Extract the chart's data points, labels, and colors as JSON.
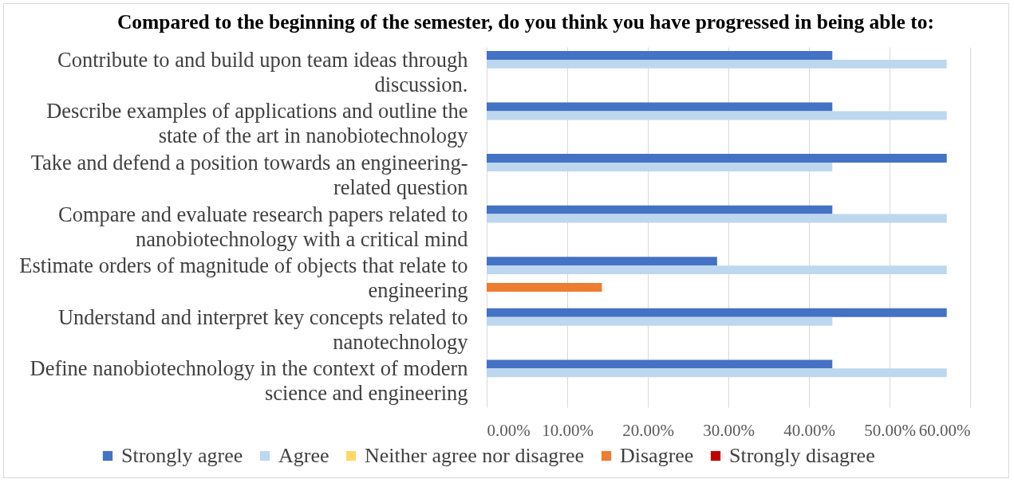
{
  "chart_data": {
    "type": "bar",
    "orientation": "horizontal",
    "title": "Compared to the beginning of the semester, do you think you have progressed in being able to:",
    "categories": [
      "Contribute to and build upon team ideas through discussion.",
      "Describe examples of applications and outline the state of the art in nanobiotechnology",
      "Take and defend a position towards an engineering-related question",
      "Compare and evaluate research papers related to nanobiotechnology with a critical mind",
      "Estimate orders of magnitude of objects that relate to engineering",
      "Understand and interpret key concepts related to nanotechnology",
      "Define nanobiotechnology in the context of modern science and engineering"
    ],
    "series": [
      {
        "name": "Strongly agree",
        "color": "#4472c4",
        "values": [
          42.9,
          42.9,
          57.1,
          42.9,
          28.6,
          57.1,
          42.9
        ]
      },
      {
        "name": "Agree",
        "color": "#bdd7ee",
        "values": [
          57.1,
          57.1,
          42.9,
          57.1,
          57.1,
          42.9,
          57.1
        ]
      },
      {
        "name": "Neither agree nor disagree",
        "color": "#ffd966",
        "values": [
          0,
          0,
          0,
          0,
          0,
          0,
          0
        ]
      },
      {
        "name": "Disagree",
        "color": "#ed7d31",
        "values": [
          0,
          0,
          0,
          0,
          14.3,
          0,
          0
        ]
      },
      {
        "name": "Strongly disagree",
        "color": "#c00000",
        "values": [
          0,
          0,
          0,
          0,
          0,
          0,
          0
        ]
      }
    ],
    "xlim": [
      0,
      60
    ],
    "xticks": [
      {
        "value": 0,
        "label": "0.00%"
      },
      {
        "value": 10,
        "label": "10.00%"
      },
      {
        "value": 20,
        "label": "20.00%"
      },
      {
        "value": 30,
        "label": "30.00%"
      },
      {
        "value": 40,
        "label": "40.00%"
      },
      {
        "value": 50,
        "label": "50.00%"
      },
      {
        "value": 60,
        "label": "60.00%"
      }
    ],
    "grid": "x",
    "legend": "bottom"
  }
}
